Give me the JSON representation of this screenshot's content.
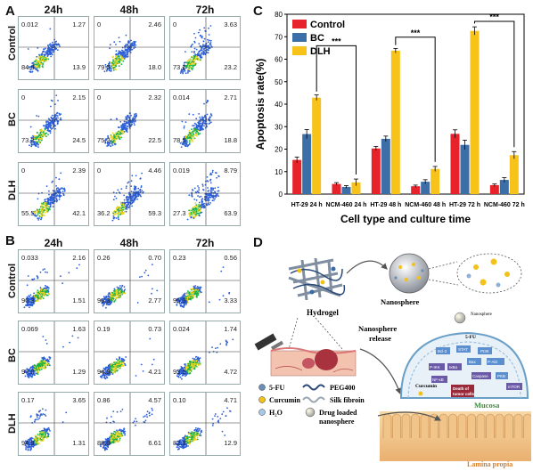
{
  "panels": {
    "A": {
      "letter": "A",
      "times": [
        "24h",
        "48h",
        "72h"
      ],
      "rows": [
        {
          "label": "Control",
          "cells": [
            {
              "ul": "0.012",
              "ur": "1.27",
              "ll": "84.8",
              "lr": "13.9"
            },
            {
              "ul": "0",
              "ur": "2.46",
              "ll": "79.5",
              "lr": "18.0"
            },
            {
              "ul": "0",
              "ur": "3.63",
              "ll": "73.1",
              "lr": "23.2"
            }
          ]
        },
        {
          "label": "BC",
          "cells": [
            {
              "ul": "0",
              "ur": "2.15",
              "ll": "73.3",
              "lr": "24.5"
            },
            {
              "ul": "0",
              "ur": "2.32",
              "ll": "75.2",
              "lr": "22.5"
            },
            {
              "ul": "0.014",
              "ur": "2.71",
              "ll": "78.5",
              "lr": "18.8"
            }
          ]
        },
        {
          "label": "DLH",
          "cells": [
            {
              "ul": "0",
              "ur": "2.39",
              "ll": "55.5",
              "lr": "42.1"
            },
            {
              "ul": "0",
              "ur": "4.46",
              "ll": "36.2",
              "lr": "59.3"
            },
            {
              "ul": "0.019",
              "ur": "8.79",
              "ll": "27.3",
              "lr": "63.9"
            }
          ]
        }
      ]
    },
    "B": {
      "letter": "B",
      "times": [
        "24h",
        "48h",
        "72h"
      ],
      "rows": [
        {
          "label": "Control",
          "cells": [
            {
              "ul": "0.033",
              "ur": "2.16",
              "ll": "96.3",
              "lr": "1.51"
            },
            {
              "ul": "0.26",
              "ur": "0.70",
              "ll": "96.3",
              "lr": "2.77"
            },
            {
              "ul": "0.23",
              "ur": "0.56",
              "ll": "95.9",
              "lr": "3.33"
            }
          ]
        },
        {
          "label": "BC",
          "cells": [
            {
              "ul": "0.069",
              "ur": "1.63",
              "ll": "97.0",
              "lr": "1.29"
            },
            {
              "ul": "0.19",
              "ur": "0.73",
              "ll": "94.9",
              "lr": "4.21"
            },
            {
              "ul": "0.024",
              "ur": "1.74",
              "ll": "93.5",
              "lr": "4.72"
            }
          ]
        },
        {
          "label": "DLH",
          "cells": [
            {
              "ul": "0.17",
              "ur": "3.65",
              "ll": "94.9",
              "lr": "1.31"
            },
            {
              "ul": "0.86",
              "ur": "4.57",
              "ll": "88.0",
              "lr": "6.61"
            },
            {
              "ul": "0.10",
              "ur": "4.71",
              "ll": "82.3",
              "lr": "12.9"
            }
          ]
        }
      ]
    },
    "C": {
      "letter": "C"
    },
    "D": {
      "letter": "D",
      "hydrogel": "Hydrogel",
      "nanosphere": "Nanosphere",
      "nanosphere_small": "Nanosphere",
      "release": "Nanosphere\nrelease",
      "curcumin_node": "Curcumin",
      "fu_node": "5-FU",
      "death_node": "Death of\ntumor cells",
      "mucosa": "Mucosa",
      "lamina": "Lamina propia",
      "legend": [
        {
          "key": "5-FU",
          "icon": "fu-dot-icon"
        },
        {
          "key": "PEG400",
          "icon": "peg-wave-icon"
        },
        {
          "key": "Curcumin",
          "icon": "curcumin-dot-icon"
        },
        {
          "key": "Silk fibroin",
          "icon": "silk-wave-icon"
        },
        {
          "key": "H₂O",
          "icon": "water-dot-icon"
        },
        {
          "key": "Drug loaded\nnanosphere",
          "icon": "nanosphere-icon"
        }
      ],
      "pathway_nodes": [
        "Bcl-2",
        "STAT",
        "PI3K",
        "P-IKK",
        "IκBα",
        "NF-κB",
        "Bax",
        "Caspase",
        "P-Akt",
        "PKB",
        "mTOR"
      ]
    }
  },
  "chart_data": {
    "type": "bar",
    "ylabel": "Apoptosis rate(%)",
    "xlabel": "Cell type and culture time",
    "ylim": [
      0,
      80
    ],
    "yticks": [
      0,
      10,
      20,
      30,
      40,
      50,
      60,
      70,
      80
    ],
    "categories": [
      "HT-29 24 h",
      "NCM-460 24 h",
      "HT-29 48 h",
      "NCM-460 48 h",
      "HT-29 72 h",
      "NCM-460 72 h"
    ],
    "series": [
      {
        "name": "Control",
        "color": "#e8222b",
        "values": [
          15.2,
          4.5,
          20.3,
          3.5,
          26.8,
          4.0
        ],
        "errors": [
          1.3,
          0.6,
          0.9,
          0.5,
          1.8,
          0.5
        ]
      },
      {
        "name": "BC",
        "color": "#3c6fa8",
        "values": [
          26.7,
          3.2,
          24.6,
          5.5,
          21.9,
          6.3
        ],
        "errors": [
          2.0,
          0.6,
          1.2,
          0.9,
          2.1,
          1.0
        ]
      },
      {
        "name": "DLH",
        "color": "#f7c31b",
        "values": [
          42.9,
          5.2,
          63.8,
          11.2,
          72.6,
          17.3
        ],
        "errors": [
          1.2,
          1.5,
          1.0,
          1.1,
          1.8,
          1.6
        ]
      }
    ],
    "significance": [
      {
        "pair": [
          "HT-29 24 h",
          "NCM-460 24 h"
        ],
        "label": "***"
      },
      {
        "pair": [
          "HT-29 48 h",
          "NCM-460 48 h"
        ],
        "label": "***"
      },
      {
        "pair": [
          "HT-29 72 h",
          "NCM-460 72 h"
        ],
        "label": "***"
      }
    ],
    "legend_position": "top-left"
  }
}
